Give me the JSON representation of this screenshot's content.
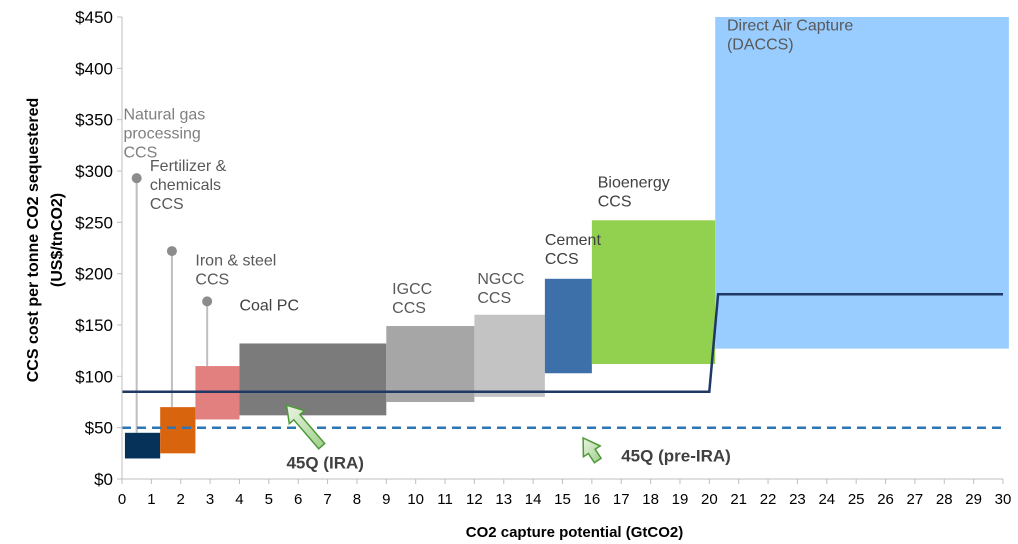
{
  "chart_data": {
    "type": "bar",
    "subtype": "floating-range (cost curve)",
    "xlabel": "CO2 capture potential (GtCO2)",
    "ylabel_line1": "CCS cost per tonne CO2 sequestered",
    "ylabel_line2": "(US$/tnCO2)",
    "xlim": [
      0,
      30
    ],
    "ylim": [
      0,
      450
    ],
    "x_ticks": [
      0,
      1,
      2,
      3,
      4,
      5,
      6,
      7,
      8,
      9,
      10,
      11,
      12,
      13,
      14,
      15,
      16,
      17,
      18,
      19,
      20,
      21,
      22,
      23,
      24,
      25,
      26,
      27,
      28,
      29,
      30
    ],
    "y_ticks": [
      0,
      50,
      100,
      150,
      200,
      250,
      300,
      350,
      400,
      450
    ],
    "y_tick_labels": [
      "$0",
      "$50",
      "$100",
      "$150",
      "$200",
      "$250",
      "$300",
      "$350",
      "$400",
      "$450"
    ],
    "bars": [
      {
        "label": [
          "Natural gas",
          "processing",
          "CCS"
        ],
        "x0": 0.1,
        "x1": 1.3,
        "y_low": 20,
        "y_high": 45,
        "whisker_high": 293,
        "color": "#06325a"
      },
      {
        "label": [
          "Fertilizer &",
          "chemicals",
          "CCS"
        ],
        "x0": 1.3,
        "x1": 2.5,
        "y_low": 25,
        "y_high": 70,
        "whisker_high": 222,
        "color": "#d9640e"
      },
      {
        "label": [
          "Iron & steel",
          "CCS"
        ],
        "x0": 2.5,
        "x1": 4.0,
        "y_low": 58,
        "y_high": 110,
        "whisker_high": 173,
        "color": "#e27f7f"
      },
      {
        "label": [
          "Coal PC"
        ],
        "x0": 4.0,
        "x1": 9.0,
        "y_low": 62,
        "y_high": 132,
        "color": "#7b7b7b"
      },
      {
        "label": [
          "IGCC",
          "CCS"
        ],
        "x0": 9.0,
        "x1": 12.0,
        "y_low": 75,
        "y_high": 149,
        "color": "#a6a6a6"
      },
      {
        "label": [
          "NGCC",
          "CCS"
        ],
        "x0": 12.0,
        "x1": 14.4,
        "y_low": 80,
        "y_high": 160,
        "color": "#c3c3c3"
      },
      {
        "label": [
          "Cement",
          "CCS"
        ],
        "x0": 14.4,
        "x1": 16.0,
        "y_low": 103,
        "y_high": 195,
        "color": "#3d6fa8"
      },
      {
        "label": [
          "Bioenergy",
          "CCS"
        ],
        "x0": 16.0,
        "x1": 20.2,
        "y_low": 112,
        "y_high": 252,
        "color": "#92d050"
      },
      {
        "label": [
          "Direct Air Capture",
          "(DACCS)"
        ],
        "x0": 20.2,
        "x1": 30.2,
        "y_low": 127,
        "y_high": 450,
        "color": "#99ccff"
      }
    ],
    "lines": [
      {
        "name": "45Q (IRA)",
        "style": "solid",
        "color": "#1f3864",
        "points": [
          [
            0,
            85
          ],
          [
            20.0,
            85
          ],
          [
            20.3,
            180
          ],
          [
            30,
            180
          ]
        ]
      },
      {
        "name": "45Q (pre-IRA)",
        "style": "dashed",
        "color": "#2e75b6",
        "points": [
          [
            0,
            50
          ],
          [
            30,
            50
          ]
        ]
      }
    ],
    "annotations": [
      {
        "text": "45Q (IRA)",
        "text_x": 5.6,
        "text_y": 10,
        "arrow_from": [
          6.8,
          32
        ],
        "arrow_to": [
          5.6,
          72
        ]
      },
      {
        "text": "45Q (pre-IRA)",
        "text_x": 17.0,
        "text_y": 17,
        "arrow_from": [
          16.2,
          18
        ],
        "arrow_to": [
          15.7,
          40
        ]
      }
    ],
    "grid": false
  }
}
